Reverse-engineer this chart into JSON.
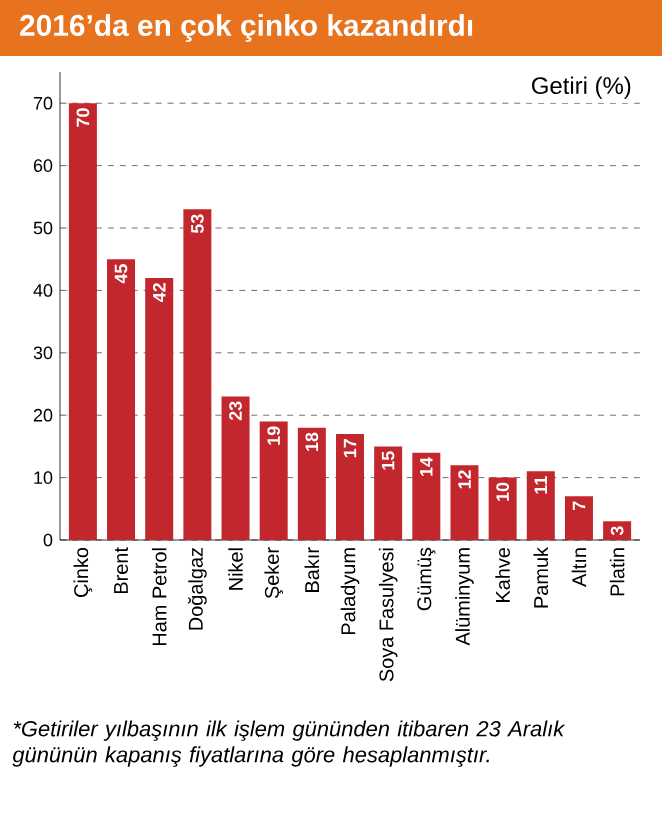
{
  "chart_data": {
    "type": "bar",
    "title": "2016’da en çok çinko kazandırdı",
    "ylabel": "Getiri (%)",
    "categories": [
      "Çinko",
      "Brent",
      "Ham Petrol",
      "Doğalgaz",
      "Nikel",
      "Şeker",
      "Bakır",
      "Paladyum",
      "Soya Fasulyesi",
      "Gümüş",
      "Alüminyum",
      "Kahve",
      "Pamuk",
      "Altın",
      "Platin"
    ],
    "values": [
      70,
      45,
      42,
      53,
      23,
      19,
      18,
      17,
      15,
      14,
      12,
      10,
      11,
      7,
      3
    ],
    "color": "#c1272d",
    "ylim": [
      0,
      75
    ],
    "yticks": [
      0,
      10,
      20,
      30,
      40,
      50,
      60,
      70
    ],
    "grid": "y",
    "data_labels": true,
    "annotations": [
      "*Getiriler yılbaşının ilk işlem gününden itibaren 23 Aralık gününün kapanış fiyatlarına göre hesaplanmıştır."
    ]
  }
}
